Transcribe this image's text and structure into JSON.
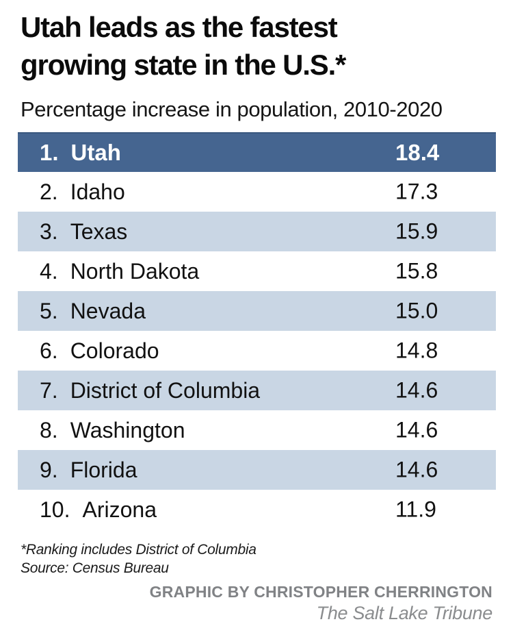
{
  "title": {
    "line1": "Utah leads as the fastest",
    "line2": "growing state in the U.S.*"
  },
  "subtitle": "Percentage increase in population, 2010-2020",
  "table": {
    "rows": [
      {
        "rank": "1.",
        "state": "Utah",
        "value": "18.4"
      },
      {
        "rank": "2.",
        "state": "Idaho",
        "value": "17.3"
      },
      {
        "rank": "3.",
        "state": "Texas",
        "value": "15.9"
      },
      {
        "rank": "4.",
        "state": "North Dakota",
        "value": "15.8"
      },
      {
        "rank": "5.",
        "state": "Nevada",
        "value": "15.0"
      },
      {
        "rank": "6.",
        "state": "Colorado",
        "value": "14.8"
      },
      {
        "rank": "7.",
        "state": "District of Columbia",
        "value": "14.6"
      },
      {
        "rank": "8.",
        "state": "Washington",
        "value": "14.6"
      },
      {
        "rank": "9.",
        "state": "Florida",
        "value": "14.6"
      },
      {
        "rank": "10.",
        "state": "Arizona",
        "value": "11.9"
      }
    ]
  },
  "footnotes": {
    "line1": "*Ranking includes District of Columbia",
    "line2": "Source: Census Bureau"
  },
  "credits": {
    "by": "GRAPHIC BY CHRISTOPHER CHERRINGTON",
    "publication": "The Salt Lake Tribune"
  },
  "colors": {
    "highlight_row_blue": "#456590",
    "shaded_row_blue": "#c9d6e4",
    "credit_gray": "#808285",
    "text_black": "#0b0b0b",
    "background": "#ffffff"
  },
  "chart_data": {
    "type": "table",
    "title": "Utah leads as the fastest growing state in the U.S.*",
    "subtitle": "Percentage increase in population, 2010-2020",
    "unit": "percent increase 2010-2020",
    "ranks": [
      1,
      2,
      3,
      4,
      5,
      6,
      7,
      8,
      9,
      10
    ],
    "categories": [
      "Utah",
      "Idaho",
      "Texas",
      "North Dakota",
      "Nevada",
      "Colorado",
      "District of Columbia",
      "Washington",
      "Florida",
      "Arizona"
    ],
    "values": [
      18.4,
      17.3,
      15.9,
      15.8,
      15.0,
      14.8,
      14.6,
      14.6,
      14.6,
      11.9
    ],
    "highlighted_rank": 1,
    "footnote": "*Ranking includes District of Columbia",
    "source": "Census Bureau",
    "credit": "GRAPHIC BY CHRISTOPHER CHERRINGTON",
    "publication": "The Salt Lake Tribune",
    "layout": "ranked list, alternating light-blue shaded rows, rank 1 on dark blue band"
  }
}
